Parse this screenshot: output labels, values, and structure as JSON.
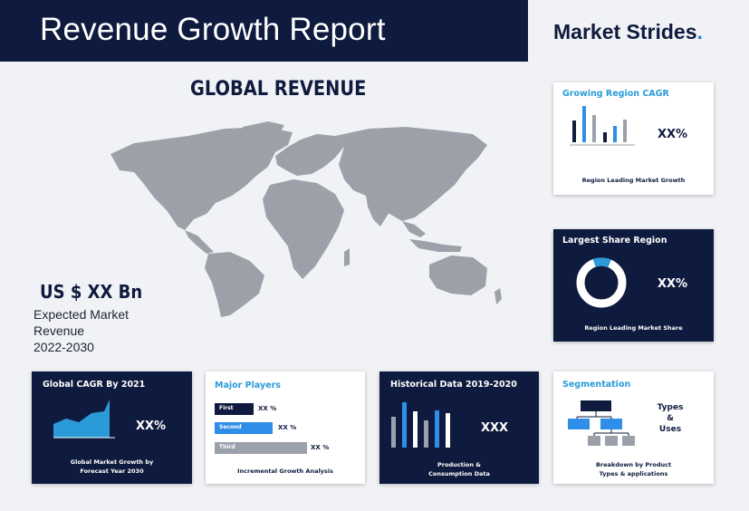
{
  "header": {
    "title": "Revenue Growth Report"
  },
  "brand": {
    "name": "Market Strides",
    "dot": "."
  },
  "map_section": {
    "title": "GLOBAL REVENUE",
    "value": "US $ XX Bn",
    "desc_line1": "Expected Market",
    "desc_line2": "Revenue",
    "desc_line3": "2022-2030"
  },
  "cards": {
    "growing_region": {
      "title": "Growing Region CAGR",
      "value": "XX%",
      "caption": "Region Leading Market Growth"
    },
    "largest_share": {
      "title": "Largest Share Region",
      "value": "XX%",
      "caption": "Region Leading Market Share",
      "share_fraction": 0.12
    },
    "global_cagr": {
      "title": "Global CAGR By 2021",
      "value": "XX%",
      "caption_line1": "Global Market Growth by",
      "caption_line2": "Forecast Year 2030"
    },
    "major_players": {
      "title": "Major Players",
      "caption": "Incremental Growth Analysis",
      "bars": [
        {
          "label": "First",
          "value": "XX %",
          "color": "#0f1b3e"
        },
        {
          "label": "Second",
          "value": "XX %",
          "color": "#2f8ee8"
        },
        {
          "label": "Third",
          "value": "XX %",
          "color": "#9aa1ab"
        }
      ]
    },
    "historical": {
      "title": "Historical Data 2019-2020",
      "value": "XXX",
      "caption_line1": "Production &",
      "caption_line2": "Consumption Data"
    },
    "segmentation": {
      "title": "Segmentation",
      "label_line1": "Types",
      "label_line2": "&",
      "label_line3": "Uses",
      "caption_line1": "Breakdown by Product",
      "caption_line2": "Types & applications"
    }
  },
  "colors": {
    "navy": "#0f1b3e",
    "blue": "#2f8ee8",
    "cyan": "#2a9bd8",
    "gray": "#9aa1ab",
    "map_gray": "#9a9ea6"
  }
}
